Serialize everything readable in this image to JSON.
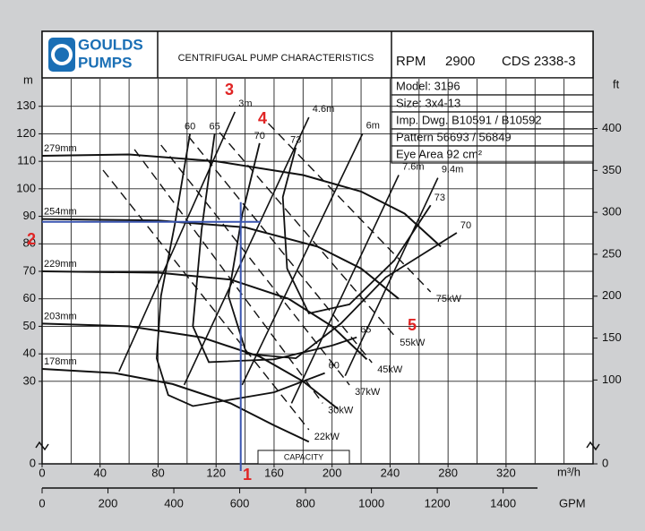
{
  "header": {
    "logo": [
      "GOULDS",
      "PUMPS"
    ],
    "rpm_label": "RPM",
    "rpm": 2900,
    "curve_no": "CDS 2338-3",
    "info": [
      "Model: 3196",
      "Size: 3x4-13",
      "Imp. Dwg. B10591 / B10592",
      "Pattern 56693  /  56849",
      "Eye Area  92  cm²"
    ]
  },
  "chart_data": {
    "type": "line",
    "title": "CENTRIFUGAL PUMP CHARACTERISTICS",
    "x_label": "m³/h",
    "x2_label": "GPM",
    "y_label": "m",
    "y2_label": "ft",
    "capacity_label": "CAPACITY",
    "xlim": [
      0,
      380
    ],
    "xticks": [
      0,
      40,
      80,
      120,
      160,
      200,
      240,
      280,
      320
    ],
    "xgrid": [
      20,
      40,
      60,
      80,
      100,
      120,
      140,
      160,
      180,
      200,
      220,
      240,
      260,
      280,
      300,
      320,
      340,
      360
    ],
    "x2lim": [
      0,
      1673
    ],
    "x2ticks": [
      0,
      200,
      400,
      600,
      800,
      1000,
      1200,
      1400
    ],
    "ylim": [
      0,
      140
    ],
    "yticks": [
      0,
      30,
      40,
      50,
      60,
      70,
      80,
      90,
      100,
      110,
      120,
      130
    ],
    "y2lim": [
      0,
      459.3
    ],
    "y2ticks": [
      0,
      100,
      150,
      200,
      250,
      300,
      350,
      400
    ],
    "grid": true,
    "head_curves": [
      {
        "name": "279mm",
        "x": [
          0,
          60,
          120,
          180,
          220,
          250,
          275
        ],
        "y": [
          112,
          112.5,
          110,
          105,
          99,
          91,
          79
        ]
      },
      {
        "name": "254mm",
        "x": [
          0,
          80,
          140,
          190,
          220,
          246
        ],
        "y": [
          89,
          88.5,
          86,
          79,
          71,
          60
        ]
      },
      {
        "name": "229mm",
        "x": [
          0,
          80,
          130,
          170,
          200,
          224
        ],
        "y": [
          70,
          69.5,
          67,
          60,
          50,
          38
        ]
      },
      {
        "name": "203mm",
        "x": [
          0,
          60,
          110,
          150,
          180,
          204
        ],
        "y": [
          51,
          50,
          46,
          39,
          30,
          20
        ]
      },
      {
        "name": "178mm",
        "x": [
          0,
          50,
          90,
          130,
          160,
          184
        ],
        "y": [
          34.5,
          33,
          29,
          22,
          14,
          8
        ]
      }
    ],
    "efficiency_curves": [
      {
        "name": "60",
        "x": [
          102,
          91.5,
          82,
          79,
          87,
          104,
          160,
          195
        ],
        "y": [
          120,
          87,
          61,
          38.4,
          25,
          21,
          26,
          33
        ]
      },
      {
        "name": "65",
        "x": [
          119,
          110,
          104,
          115,
          160,
          200,
          217
        ],
        "y": [
          120,
          85,
          50,
          37,
          38,
          43,
          46
        ]
      },
      {
        "name": "70",
        "x": [
          150,
          138,
          128.5,
          141,
          175,
          206,
          237,
          286
        ],
        "y": [
          116.6,
          90.5,
          61,
          40,
          38.4,
          51,
          67.8,
          84
        ]
      },
      {
        "name": "73",
        "x": [
          175,
          166,
          169,
          184,
          212,
          243,
          268
        ],
        "y": [
          115,
          97,
          71,
          54.7,
          58,
          74,
          94
        ]
      }
    ],
    "npsh_curves": [
      {
        "name": "3m",
        "x": [
          133,
          53
        ],
        "y": [
          128,
          33.6
        ]
      },
      {
        "name": "4.6m",
        "x": [
          184,
          98
        ],
        "y": [
          126,
          28.7
        ]
      },
      {
        "name": "6m",
        "x": [
          221,
          138
        ],
        "y": [
          120,
          28.7
        ]
      },
      {
        "name": "7.6m",
        "x": [
          246,
          172
        ],
        "y": [
          105,
          22
        ]
      },
      {
        "name": "9.4m",
        "x": [
          273,
          209
        ],
        "y": [
          104,
          32
        ]
      }
    ],
    "power_curves": [
      {
        "name": "22kW",
        "x": [
          42,
          184
        ],
        "y": [
          106.8,
          12.4
        ]
      },
      {
        "name": "30kW",
        "x": [
          63.7,
          193.5
        ],
        "y": [
          114.3,
          22
        ]
      },
      {
        "name": "37kW",
        "x": [
          82,
          212
        ],
        "y": [
          115.9,
          28.7
        ]
      },
      {
        "name": "45kW",
        "x": [
          101,
          227.5
        ],
        "y": [
          119,
          36.8
        ]
      },
      {
        "name": "55kW",
        "x": [
          122.4,
          243
        ],
        "y": [
          120.5,
          46.6
        ]
      },
      {
        "name": "75kW",
        "x": [
          156,
          268
        ],
        "y": [
          123.8,
          62.5
        ]
      }
    ],
    "operating_point": {
      "x": 137,
      "y": 88,
      "color": "#3a55b0"
    },
    "annotation_color": "#e02424",
    "annotations": [
      "1",
      "2",
      "3",
      "4",
      "5"
    ]
  }
}
